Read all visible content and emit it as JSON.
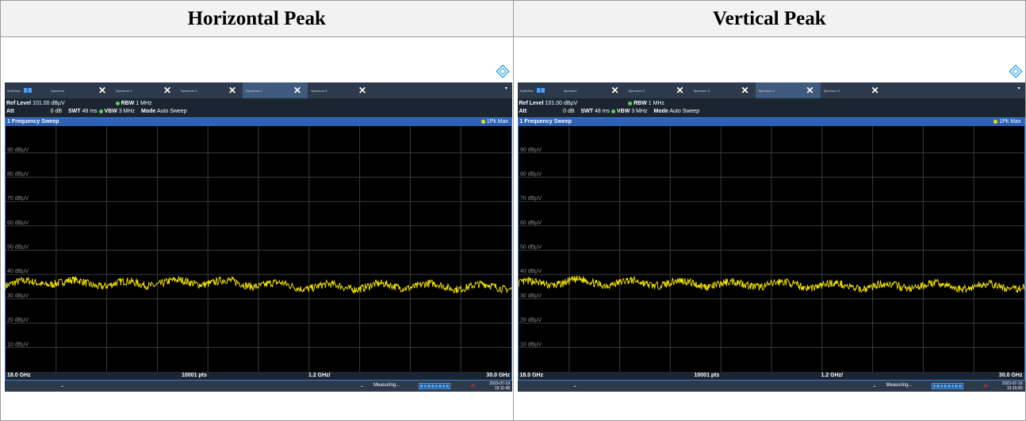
{
  "headers": {
    "left": "Horizontal Peak",
    "right": "Vertical Peak"
  },
  "colors": {
    "trace": "#f5e600",
    "grid": "#3a3a3a",
    "frame": "#3e7fd6",
    "title_bar": "#2c63b6"
  },
  "panels": [
    {
      "tabs": {
        "main": "MultiView",
        "t1": "Spectrum",
        "t2": "Spectrum 2",
        "t3": "Spectrum 3",
        "t4": "Spectrum 4",
        "t5": "Spectrum 5"
      },
      "info": {
        "ref_label": "Ref Level",
        "ref_value": "101.00 dBµV",
        "att_label": "Att",
        "att_value": "0 dB",
        "swt_label": "SWT",
        "swt_value": "48 ms",
        "rbw_label": "RBW",
        "rbw_value": "1 MHz",
        "vbw_label": "VBW",
        "vbw_value": "3 MHz",
        "mode_label": "Mode",
        "mode_value": "Auto Sweep"
      },
      "window_title": "1 Frequency Sweep",
      "trace_label": "1Pk Max",
      "y_labels": [
        "90 dBµV",
        "80 dBµV",
        "70 dBµV",
        "60 dBµV",
        "50 dBµV",
        "40 dBµV",
        "30 dBµV",
        "20 dBµV",
        "10 dBµV"
      ],
      "foot": {
        "start": "18.0 GHz",
        "points": "10001 pts",
        "span_div": "1.2 GHz/",
        "stop": "30.0 GHz"
      },
      "status": {
        "measuring": "Measuring...",
        "date": "2023-07-19",
        "time": "15:11:48"
      },
      "seed": 7
    },
    {
      "tabs": {
        "main": "MultiView",
        "t1": "Spectrum",
        "t2": "Spectrum 2",
        "t3": "Spectrum 3",
        "t4": "Spectrum 4",
        "t5": "Spectrum 5"
      },
      "info": {
        "ref_label": "Ref Level",
        "ref_value": "101.00 dBµV",
        "att_label": "Att",
        "att_value": "0 dB",
        "swt_label": "SWT",
        "swt_value": "48 ms",
        "rbw_label": "RBW",
        "rbw_value": "1 MHz",
        "vbw_label": "VBW",
        "vbw_value": "3 MHz",
        "mode_label": "Mode",
        "mode_value": "Auto Sweep"
      },
      "window_title": "1 Frequency Sweep",
      "trace_label": "1Pk Max",
      "y_labels": [
        "90 dBµV",
        "80 dBµV",
        "70 dBµV",
        "60 dBµV",
        "50 dBµV",
        "40 dBµV",
        "30 dBµV",
        "20 dBµV",
        "10 dBµV"
      ],
      "foot": {
        "start": "18.0 GHz",
        "points": "10001 pts",
        "span_div": "1.2 GHz/",
        "stop": "30.0 GHz"
      },
      "status": {
        "measuring": "Measuring...",
        "date": "2023-07-19",
        "time": "15:15:40"
      },
      "seed": 13
    }
  ],
  "chart_data": {
    "type": "line",
    "x_range_ghz": [
      18.0,
      30.0
    ],
    "y_range_dbuv": [
      0,
      101
    ],
    "y_ticks": [
      90,
      80,
      70,
      60,
      50,
      40,
      30,
      20,
      10
    ],
    "grid": true,
    "series": [
      {
        "x": [
          18.0,
          19.2,
          20.4,
          21.6,
          22.8,
          24.0,
          25.2,
          26.4,
          27.6,
          28.8,
          30.0
        ],
        "values": [
          36,
          37,
          36,
          36.5,
          37,
          36,
          35,
          35,
          35.5,
          35,
          35
        ]
      },
      {
        "x": [
          18.0,
          19.2,
          20.4,
          21.6,
          22.8,
          24.0,
          25.2,
          26.4,
          27.6,
          28.8,
          30.0
        ],
        "values": [
          36,
          37,
          36.5,
          36.5,
          36,
          36,
          35.5,
          35,
          35.5,
          35,
          35
        ]
      }
    ]
  }
}
